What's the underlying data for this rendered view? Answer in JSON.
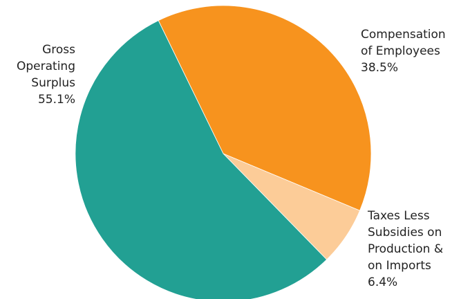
{
  "chart_data": {
    "type": "pie",
    "start_angle_deg": -26,
    "slices": [
      {
        "label_lines": [
          "Compensation",
          "of Employees"
        ],
        "value_label": "38.5%",
        "value": 38.5,
        "color": "#f7931e"
      },
      {
        "label_lines": [
          "Taxes Less",
          "Subsidies on",
          "Production &",
          "on Imports"
        ],
        "value_label": "6.4%",
        "value": 6.4,
        "color": "#fccc98"
      },
      {
        "label_lines": [
          "Gross",
          "Operating",
          "Surplus"
        ],
        "value_label": "55.1%",
        "value": 55.1,
        "color": "#22a093"
      }
    ]
  }
}
